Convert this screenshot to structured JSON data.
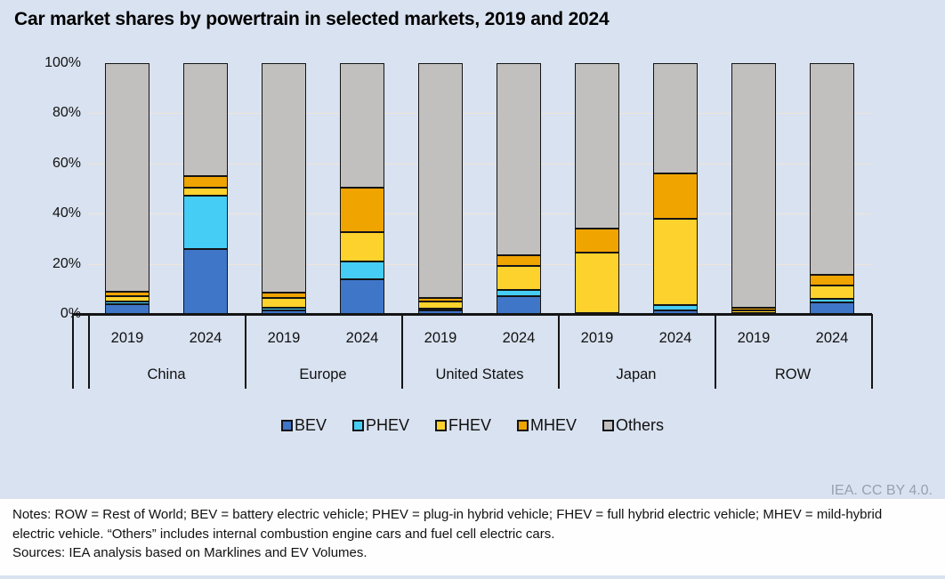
{
  "title": "Car market shares by powertrain in selected markets, 2019 and 2024",
  "credit": "IEA. CC BY 4.0.",
  "notes": "Notes: ROW = Rest of World; BEV = battery electric vehicle; PHEV = plug-in hybrid vehicle; FHEV = full hybrid electric vehicle; MHEV = mild-hybrid electric vehicle. “Others” includes internal combustion engine cars and fuel cell electric cars.",
  "sources": "Sources: IEA analysis based on Marklines and EV Volumes.",
  "colors": {
    "BEV": "#3f76c8",
    "PHEV": "#45cdf6",
    "FHEV": "#fdd22d",
    "MHEV": "#f0a400",
    "Others": "#c1c0bf",
    "background": "#d9e2f0",
    "panel": "#fefefe",
    "segment_border": "#141414",
    "credit_text": "#98a1b0"
  },
  "chart_data": {
    "type": "bar",
    "stacked": true,
    "unit": "%",
    "title": "Car market shares by powertrain in selected markets, 2019 and 2024",
    "xlabel": "",
    "ylabel": "",
    "ylim": [
      0,
      100
    ],
    "yticks": [
      "0%",
      "20%",
      "40%",
      "60%",
      "80%",
      "100%"
    ],
    "grid": "faint horizontal at 20/40/60/80",
    "legend_position": "bottom",
    "groups": [
      "China",
      "Europe",
      "United States",
      "Japan",
      "ROW"
    ],
    "years": [
      "2019",
      "2024"
    ],
    "categories": [
      "China 2019",
      "China 2024",
      "Europe 2019",
      "Europe 2024",
      "United States 2019",
      "United States 2024",
      "Japan 2019",
      "Japan 2024",
      "ROW 2019",
      "ROW 2024"
    ],
    "series": [
      {
        "name": "BEV",
        "color": "#3f76c8",
        "values": [
          4,
          26,
          1.5,
          14,
          1.5,
          7,
          0.3,
          1.5,
          0.3,
          4.5
        ]
      },
      {
        "name": "PHEV",
        "color": "#45cdf6",
        "values": [
          1,
          21,
          1,
          7,
          0.5,
          2.5,
          0.2,
          2,
          0.2,
          1.5
        ]
      },
      {
        "name": "FHEV",
        "color": "#fdd22d",
        "values": [
          2,
          3.5,
          4,
          11.5,
          3,
          9.5,
          24,
          34.5,
          1,
          5.5
        ]
      },
      {
        "name": "MHEV",
        "color": "#f0a400",
        "values": [
          2,
          4.5,
          2,
          18,
          1.5,
          4.5,
          9.5,
          18,
          1,
          4
        ]
      },
      {
        "name": "Others",
        "color": "#c1c0bf",
        "values": [
          91,
          45,
          91.5,
          49.5,
          93.5,
          76.5,
          66,
          44,
          97.5,
          84.5
        ]
      }
    ]
  }
}
